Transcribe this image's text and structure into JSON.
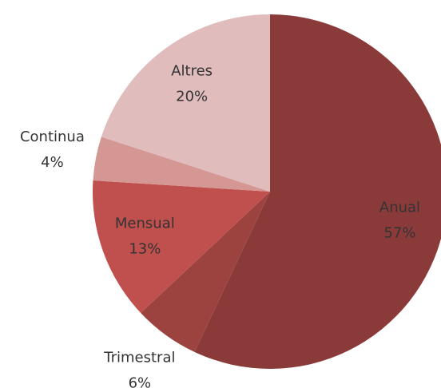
{
  "chart_data": {
    "type": "pie",
    "categories": [
      "Anual",
      "Trimestral",
      "Mensual",
      "Continua",
      "Altres"
    ],
    "values": [
      57,
      6,
      13,
      4,
      20
    ],
    "value_labels": [
      "57%",
      "6%",
      "13%",
      "4%",
      "20%"
    ],
    "colors": [
      "#8b3a3a",
      "#9c423f",
      "#c0504d",
      "#d49794",
      "#e0bcbc"
    ]
  }
}
